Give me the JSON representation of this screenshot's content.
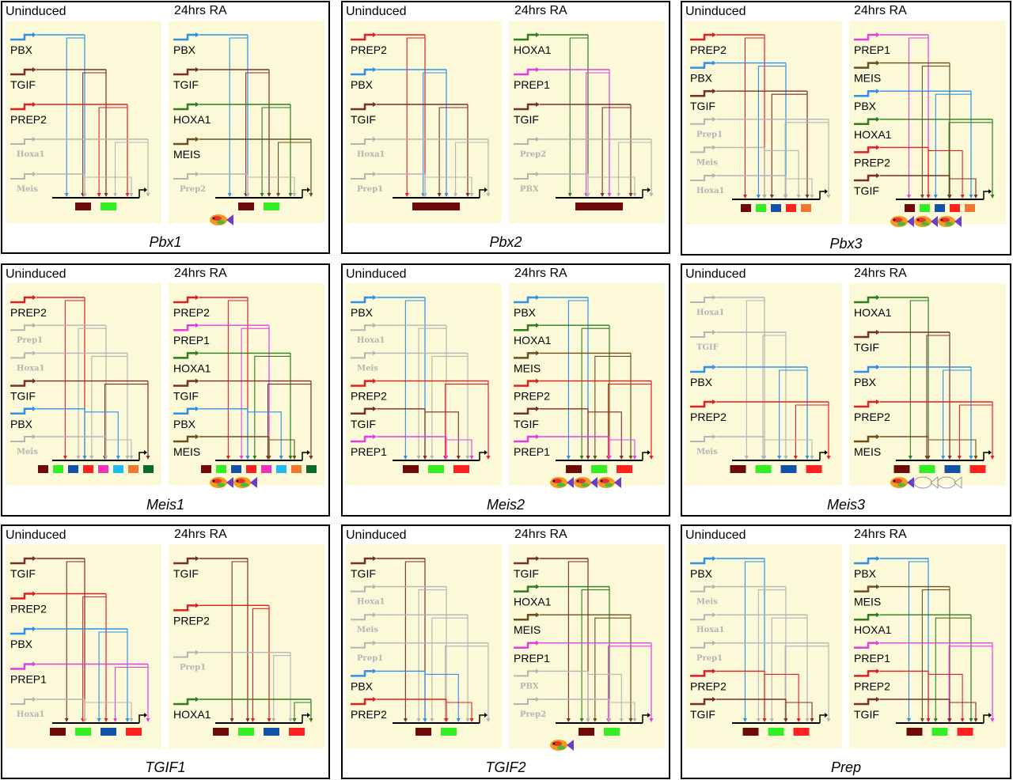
{
  "labels": {
    "uninduced": "Uninduced",
    "ra": "24hrs RA"
  },
  "colors": {
    "PBX": "#2f8fe6",
    "TGIF": "#7a2e2e",
    "PREP2": "#e02020",
    "PREP1": "#e040e0",
    "HOXA1": "#2e7d1e",
    "MEIS": "#6e4e1a",
    "inactive": "#b4b4b4",
    "panel_bg": "#fbf9d8",
    "box_maroon": "#6e0a0a",
    "box_green": "#33ee22",
    "box_blue": "#1452a8",
    "box_red": "#ff2020",
    "box_cyan": "#22bbee",
    "box_orange": "#f07830",
    "box_darkgreen": "#0a6a2a",
    "box_magenta": "#ee33bb"
  },
  "genes": [
    {
      "name": "Pbx1",
      "uninduced": {
        "factors": [
          {
            "label": "PBX",
            "color": "PBX"
          },
          {
            "label": "TGIF",
            "color": "TGIF"
          },
          {
            "label": "PREP2",
            "color": "PREP2"
          },
          {
            "label": "Hoxa1",
            "color": "inactive",
            "faded": true
          },
          {
            "label": "Meis",
            "color": "inactive",
            "faded": true
          }
        ],
        "boxes": [
          "box_maroon",
          "box_green"
        ]
      },
      "ra": {
        "factors": [
          {
            "label": "PBX",
            "color": "PBX"
          },
          {
            "label": "TGIF",
            "color": "TGIF"
          },
          {
            "label": "HOXA1",
            "color": "HOXA1"
          },
          {
            "label": "MEIS",
            "color": "MEIS"
          },
          {
            "label": "Prep2",
            "color": "inactive",
            "faded": true
          }
        ],
        "boxes": [
          "box_maroon",
          "box_green"
        ],
        "fish": 1
      }
    },
    {
      "name": "Pbx2",
      "uninduced": {
        "factors": [
          {
            "label": "PREP2",
            "color": "PREP2"
          },
          {
            "label": "PBX",
            "color": "PBX"
          },
          {
            "label": "TGIF",
            "color": "TGIF"
          },
          {
            "label": "Hoxa1",
            "color": "inactive",
            "faded": true
          },
          {
            "label": "Prep1",
            "color": "inactive",
            "faded": true
          }
        ],
        "boxes": [
          "box_maroon"
        ]
      },
      "ra": {
        "factors": [
          {
            "label": "HOXA1",
            "color": "HOXA1"
          },
          {
            "label": "PREP1",
            "color": "PREP1"
          },
          {
            "label": "TGIF",
            "color": "TGIF"
          },
          {
            "label": "Prep2",
            "color": "inactive",
            "faded": true
          },
          {
            "label": "PBX",
            "color": "inactive",
            "faded": true
          }
        ],
        "boxes": [
          "box_maroon"
        ]
      }
    },
    {
      "name": "Pbx3",
      "uninduced": {
        "factors": [
          {
            "label": "PREP2",
            "color": "PREP2"
          },
          {
            "label": "PBX",
            "color": "PBX"
          },
          {
            "label": "TGIF",
            "color": "TGIF"
          },
          {
            "label": "Prep1",
            "color": "inactive",
            "faded": true
          },
          {
            "label": "Meis",
            "color": "inactive",
            "faded": true
          },
          {
            "label": "Hoxa1",
            "color": "inactive",
            "faded": true
          }
        ],
        "boxes": [
          "box_maroon",
          "box_green",
          "box_blue",
          "box_red",
          "box_orange"
        ]
      },
      "ra": {
        "factors": [
          {
            "label": "PREP1",
            "color": "PREP1"
          },
          {
            "label": "MEIS",
            "color": "MEIS"
          },
          {
            "label": "PBX",
            "color": "PBX"
          },
          {
            "label": "HOXA1",
            "color": "HOXA1"
          },
          {
            "label": "PREP2",
            "color": "PREP2"
          },
          {
            "label": "TGIF",
            "color": "TGIF"
          }
        ],
        "boxes": [
          "box_maroon",
          "box_green",
          "box_blue",
          "box_red",
          "box_orange"
        ],
        "fish": 3
      }
    },
    {
      "name": "Meis1",
      "uninduced": {
        "factors": [
          {
            "label": "PREP2",
            "color": "PREP2"
          },
          {
            "label": "Prep1",
            "color": "inactive",
            "faded": true
          },
          {
            "label": "Hoxa1",
            "color": "inactive",
            "faded": true
          },
          {
            "label": "TGIF",
            "color": "TGIF"
          },
          {
            "label": "PBX",
            "color": "PBX"
          },
          {
            "label": "Meis",
            "color": "inactive",
            "faded": true
          }
        ],
        "boxes": [
          "box_maroon",
          "box_green",
          "box_blue",
          "box_red",
          "box_magenta",
          "box_cyan",
          "box_orange",
          "box_darkgreen"
        ]
      },
      "ra": {
        "factors": [
          {
            "label": "PREP2",
            "color": "PREP2"
          },
          {
            "label": "PREP1",
            "color": "PREP1"
          },
          {
            "label": "HOXA1",
            "color": "HOXA1"
          },
          {
            "label": "TGIF",
            "color": "TGIF"
          },
          {
            "label": "PBX",
            "color": "PBX"
          },
          {
            "label": "MEIS",
            "color": "MEIS"
          }
        ],
        "boxes": [
          "box_maroon",
          "box_green",
          "box_blue",
          "box_red",
          "box_magenta",
          "box_cyan",
          "box_orange",
          "box_darkgreen"
        ],
        "fish": 2
      }
    },
    {
      "name": "Meis2",
      "uninduced": {
        "factors": [
          {
            "label": "PBX",
            "color": "PBX"
          },
          {
            "label": "Hoxa1",
            "color": "inactive",
            "faded": true
          },
          {
            "label": "Meis",
            "color": "inactive",
            "faded": true
          },
          {
            "label": "PREP2",
            "color": "PREP2"
          },
          {
            "label": "TGIF",
            "color": "TGIF"
          },
          {
            "label": "PREP1",
            "color": "PREP1"
          }
        ],
        "boxes": [
          "box_maroon",
          "box_green",
          "box_red"
        ]
      },
      "ra": {
        "factors": [
          {
            "label": "PBX",
            "color": "PBX"
          },
          {
            "label": "HOXA1",
            "color": "HOXA1"
          },
          {
            "label": "MEIS",
            "color": "MEIS"
          },
          {
            "label": "PREP2",
            "color": "PREP2"
          },
          {
            "label": "TGIF",
            "color": "TGIF"
          },
          {
            "label": "PREP1",
            "color": "PREP1"
          }
        ],
        "boxes": [
          "box_maroon",
          "box_green",
          "box_red"
        ],
        "fish": 3
      }
    },
    {
      "name": "Meis3",
      "uninduced": {
        "factors": [
          {
            "label": "Hoxa1",
            "color": "inactive",
            "faded": true
          },
          {
            "label": "TGIF",
            "color": "inactive",
            "faded": true
          },
          {
            "label": "PBX",
            "color": "PBX"
          },
          {
            "label": "PREP2",
            "color": "PREP2"
          },
          {
            "label": "Meis",
            "color": "inactive",
            "faded": true
          }
        ],
        "boxes": [
          "box_maroon",
          "box_green",
          "box_blue",
          "box_red"
        ]
      },
      "ra": {
        "factors": [
          {
            "label": "HOXA1",
            "color": "HOXA1"
          },
          {
            "label": "TGIF",
            "color": "TGIF"
          },
          {
            "label": "PBX",
            "color": "PBX"
          },
          {
            "label": "PREP2",
            "color": "PREP2"
          },
          {
            "label": "MEIS",
            "color": "MEIS"
          }
        ],
        "boxes": [
          "box_maroon",
          "box_green",
          "box_blue",
          "box_red"
        ],
        "fish": 1,
        "fish_outline": 2
      }
    },
    {
      "name": "TGIF1",
      "uninduced": {
        "factors": [
          {
            "label": "TGIF",
            "color": "TGIF"
          },
          {
            "label": "PREP2",
            "color": "PREP2"
          },
          {
            "label": "PBX",
            "color": "PBX"
          },
          {
            "label": "PREP1",
            "color": "PREP1"
          },
          {
            "label": "Hoxa1",
            "color": "inactive",
            "faded": true
          }
        ],
        "boxes": [
          "box_maroon",
          "box_green",
          "box_blue",
          "box_red"
        ]
      },
      "ra": {
        "factors": [
          {
            "label": "TGIF",
            "color": "TGIF"
          },
          {
            "label": "PREP2",
            "color": "PREP2"
          },
          {
            "label": "Prep1",
            "color": "inactive",
            "faded": true
          },
          {
            "label": "HOXA1",
            "color": "HOXA1"
          }
        ],
        "boxes": [
          "box_maroon",
          "box_green",
          "box_blue",
          "box_red"
        ]
      }
    },
    {
      "name": "TGIF2",
      "uninduced": {
        "factors": [
          {
            "label": "TGIF",
            "color": "TGIF"
          },
          {
            "label": "Hoxa1",
            "color": "inactive",
            "faded": true
          },
          {
            "label": "Meis",
            "color": "inactive",
            "faded": true
          },
          {
            "label": "Prep1",
            "color": "inactive",
            "faded": true
          },
          {
            "label": "PBX",
            "color": "PBX"
          },
          {
            "label": "PREP2",
            "color": "PREP2"
          }
        ],
        "boxes": [
          "box_maroon",
          "box_green"
        ]
      },
      "ra": {
        "factors": [
          {
            "label": "TGIF",
            "color": "TGIF"
          },
          {
            "label": "HOXA1",
            "color": "HOXA1"
          },
          {
            "label": "MEIS",
            "color": "MEIS"
          },
          {
            "label": "PREP1",
            "color": "PREP1"
          },
          {
            "label": "PBX",
            "color": "inactive",
            "faded": true
          },
          {
            "label": "Prep2",
            "color": "inactive",
            "faded": true
          }
        ],
        "boxes": [
          "box_maroon",
          "box_green"
        ],
        "fish": 1
      }
    },
    {
      "name": "Prep",
      "uninduced": {
        "factors": [
          {
            "label": "PBX",
            "color": "PBX"
          },
          {
            "label": "Meis",
            "color": "inactive",
            "faded": true
          },
          {
            "label": "Hoxa1",
            "color": "inactive",
            "faded": true
          },
          {
            "label": "Prep1",
            "color": "inactive",
            "faded": true
          },
          {
            "label": "PREP2",
            "color": "PREP2"
          },
          {
            "label": "TGIF",
            "color": "TGIF"
          }
        ],
        "boxes": [
          "box_maroon",
          "box_green",
          "box_red"
        ]
      },
      "ra": {
        "factors": [
          {
            "label": "PBX",
            "color": "PBX"
          },
          {
            "label": "MEIS",
            "color": "MEIS"
          },
          {
            "label": "HOXA1",
            "color": "HOXA1"
          },
          {
            "label": "PREP1",
            "color": "PREP1"
          },
          {
            "label": "PREP2",
            "color": "PREP2"
          },
          {
            "label": "TGIF",
            "color": "TGIF"
          }
        ],
        "boxes": [
          "box_maroon",
          "box_green",
          "box_red"
        ]
      }
    }
  ]
}
